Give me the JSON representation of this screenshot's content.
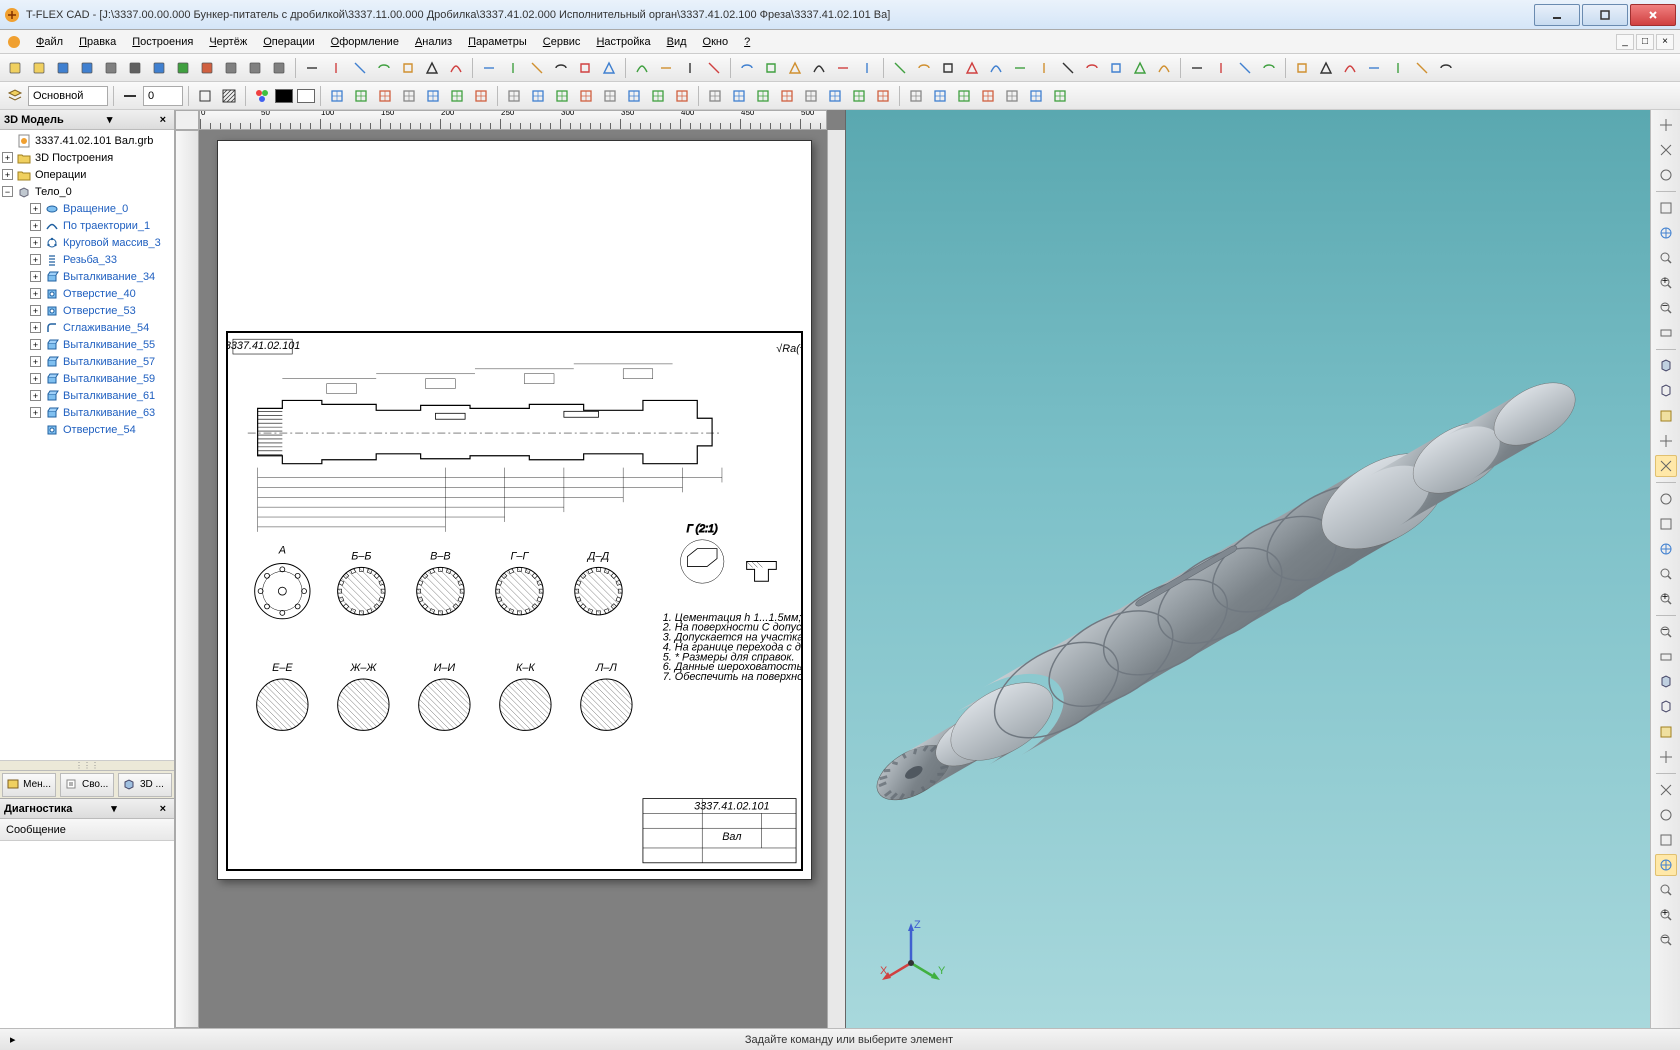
{
  "window_title": "T-FLEX CAD - [J:\\3337.00.00.000 Бункер-питатель с дробилкой\\3337.11.00.000 Дробилка\\3337.41.02.000 Исполнительный орган\\3337.41.02.100 Фреза\\3337.41.02.101 Ва]",
  "menu": [
    "Файл",
    "Правка",
    "Построения",
    "Чертёж",
    "Операции",
    "Оформление",
    "Анализ",
    "Параметры",
    "Сервис",
    "Настройка",
    "Вид",
    "Окно",
    "?"
  ],
  "toolbar1_left_count": 12,
  "toolbar1_right_groups": [
    7,
    6,
    4,
    6,
    12,
    4,
    7
  ],
  "layer_name": "Основной",
  "layer_num": "0",
  "colors_swatches": [
    "#000000",
    "#ffffff"
  ],
  "ruler_ticks": [
    "0",
    "50",
    "100",
    "150",
    "200",
    "250",
    "300",
    "350",
    "400",
    "450",
    "500"
  ],
  "left_panel": {
    "title": "3D Модель",
    "root": "3337.41.02.101 Вал.grb",
    "groups": [
      {
        "icon": "folder",
        "label": "3D Построения"
      },
      {
        "icon": "folder",
        "label": "Операции"
      }
    ],
    "body_label": "Тело_0",
    "features": [
      {
        "icon": "rev",
        "color": "#2080d0",
        "label": "Вращение_0"
      },
      {
        "icon": "sweep",
        "color": "#2080d0",
        "label": "По траектории_1"
      },
      {
        "icon": "circ",
        "color": "#2080d0",
        "label": "Круговой массив_3"
      },
      {
        "icon": "thread",
        "color": "#2080d0",
        "label": "Резьба_33"
      },
      {
        "icon": "extr",
        "color": "#2080d0",
        "label": "Выталкивание_34"
      },
      {
        "icon": "hole",
        "color": "#2080d0",
        "label": "Отверстие_40"
      },
      {
        "icon": "hole",
        "color": "#2080d0",
        "label": "Отверстие_53"
      },
      {
        "icon": "fillet",
        "color": "#2080d0",
        "label": "Сглаживание_54"
      },
      {
        "icon": "extr",
        "color": "#2080d0",
        "label": "Выталкивание_55"
      },
      {
        "icon": "extr",
        "color": "#2080d0",
        "label": "Выталкивание_57"
      },
      {
        "icon": "extr",
        "color": "#2080d0",
        "label": "Выталкивание_59"
      },
      {
        "icon": "extr",
        "color": "#2080d0",
        "label": "Выталкивание_61"
      },
      {
        "icon": "extr",
        "color": "#2080d0",
        "label": "Выталкивание_63"
      },
      {
        "icon": "hole",
        "color": "#2080d0",
        "label": "Отверстие_54"
      }
    ],
    "bottom_tabs": [
      "Мен...",
      "Сво...",
      "3D ..."
    ],
    "diag_title": "Диагностика",
    "diag_col": "Сообщение"
  },
  "viewport_3d": {
    "bg_top": "#49969f",
    "bg_bot": "#b5e0e3",
    "shaft_color": "#9aa2a8",
    "axes": {
      "x": "#d04040",
      "y": "#40b040",
      "z": "#4060d0"
    }
  },
  "drawing": {
    "title_number": "3337.41.02.101",
    "part_name": "Вал",
    "notes_count": 7
  },
  "status_prompt": "Задайте команду или выберите элемент",
  "right_tool_count": 32
}
